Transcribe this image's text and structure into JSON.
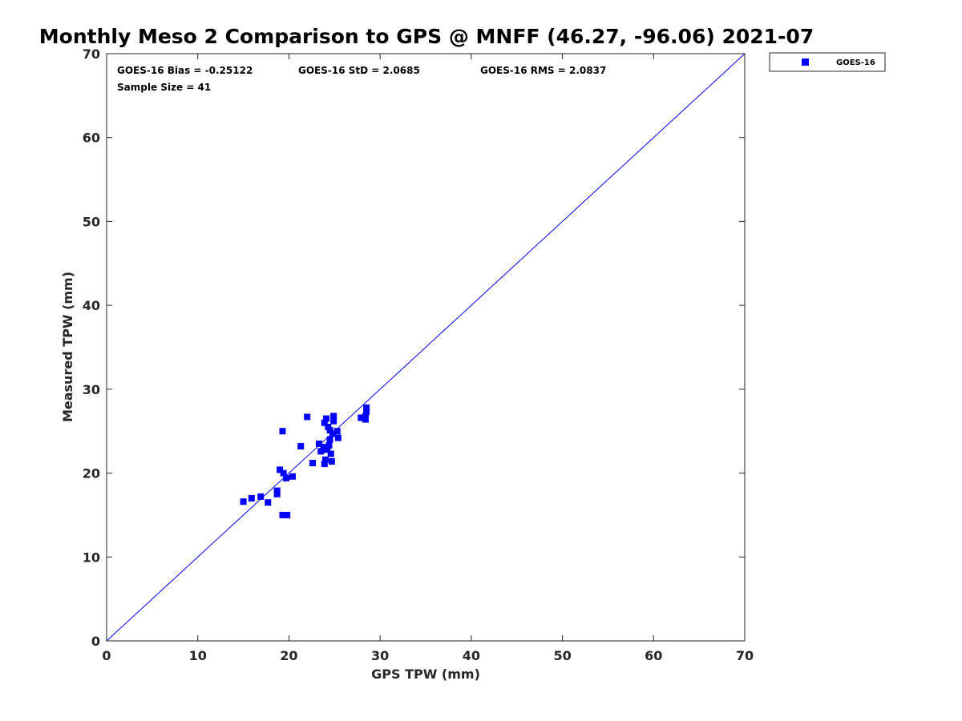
{
  "chart_data": {
    "type": "scatter",
    "title": "Monthly Meso 2 Comparison to GPS @ MNFF (46.27, -96.06) 2021-07",
    "xlabel": "GPS TPW (mm)",
    "ylabel": "Measured TPW (mm)",
    "xlim": [
      0,
      70
    ],
    "ylim": [
      0,
      70
    ],
    "xticks": [
      0,
      10,
      20,
      30,
      40,
      50,
      60,
      70
    ],
    "yticks": [
      0,
      10,
      20,
      30,
      40,
      50,
      60,
      70
    ],
    "grid": false,
    "legend_position": "top-right-outside",
    "reference_line": {
      "x": [
        0,
        70
      ],
      "y": [
        0,
        70
      ],
      "color": "#0000ff"
    },
    "annotations": {
      "bias": "GOES-16 Bias = -0.25122",
      "std": "GOES-16 StD = 2.0685",
      "rms": "GOES-16 RMS = 2.0837",
      "sample": "Sample Size = 41"
    },
    "series": [
      {
        "name": "GOES-16",
        "color": "#0000ff",
        "marker": "square",
        "points": [
          [
            15.0,
            16.6
          ],
          [
            15.9,
            17.0
          ],
          [
            16.9,
            17.2
          ],
          [
            17.7,
            16.5
          ],
          [
            18.7,
            17.5
          ],
          [
            18.7,
            17.9
          ],
          [
            19.0,
            20.4
          ],
          [
            19.3,
            15.0
          ],
          [
            19.4,
            20.0
          ],
          [
            19.3,
            25.0
          ],
          [
            19.7,
            19.4
          ],
          [
            19.8,
            15.0
          ],
          [
            20.4,
            19.6
          ],
          [
            21.3,
            23.2
          ],
          [
            22.0,
            26.7
          ],
          [
            22.6,
            21.2
          ],
          [
            23.3,
            23.5
          ],
          [
            23.5,
            22.6
          ],
          [
            23.9,
            26.0
          ],
          [
            23.9,
            21.1
          ],
          [
            24.0,
            21.6
          ],
          [
            24.0,
            22.8
          ],
          [
            24.1,
            26.5
          ],
          [
            24.2,
            23.0
          ],
          [
            24.3,
            25.5
          ],
          [
            24.4,
            23.3
          ],
          [
            24.5,
            24.0
          ],
          [
            24.5,
            25.1
          ],
          [
            24.6,
            22.3
          ],
          [
            24.7,
            21.4
          ],
          [
            24.8,
            24.7
          ],
          [
            24.9,
            26.8
          ],
          [
            24.9,
            26.2
          ],
          [
            25.3,
            25.0
          ],
          [
            25.4,
            24.2
          ],
          [
            27.9,
            26.6
          ],
          [
            28.4,
            26.8
          ],
          [
            28.5,
            27.8
          ],
          [
            28.5,
            27.3
          ],
          [
            28.4,
            26.4
          ],
          [
            23.8,
            23.1
          ]
        ]
      }
    ]
  }
}
